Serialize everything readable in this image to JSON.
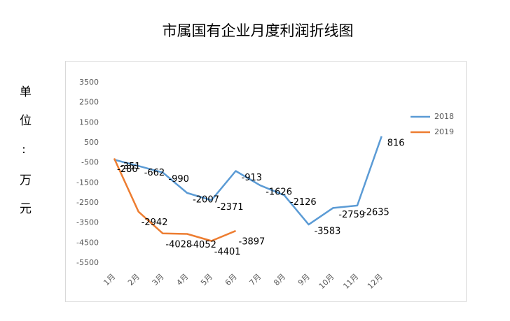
{
  "chart_data": {
    "type": "line",
    "title": "市属国有企业月度利润折线图",
    "y_label": "单位:万元",
    "categories": [
      "1月",
      "2月",
      "3月",
      "4月",
      "5月",
      "6月",
      "7月",
      "8月",
      "9月",
      "10月",
      "11月",
      "12月"
    ],
    "series": [
      {
        "name": "2018",
        "color": "#5b9bd5",
        "values": [
          -351,
          -662,
          -990,
          -2007,
          -2371,
          -913,
          -1626,
          -2126,
          -3583,
          -2759,
          -2635,
          816
        ]
      },
      {
        "name": "2019",
        "color": "#ed7d31",
        "values": [
          -286,
          -2942,
          -4028,
          -4052,
          -4401,
          -3897,
          null,
          null,
          null,
          null,
          null,
          null
        ]
      }
    ],
    "ylim": [
      -5500,
      3500
    ],
    "yticks": [
      3500,
      2500,
      1500,
      500,
      -500,
      -1500,
      -2500,
      -3500,
      -4500,
      -5500
    ],
    "grid": false,
    "legend": "right"
  }
}
